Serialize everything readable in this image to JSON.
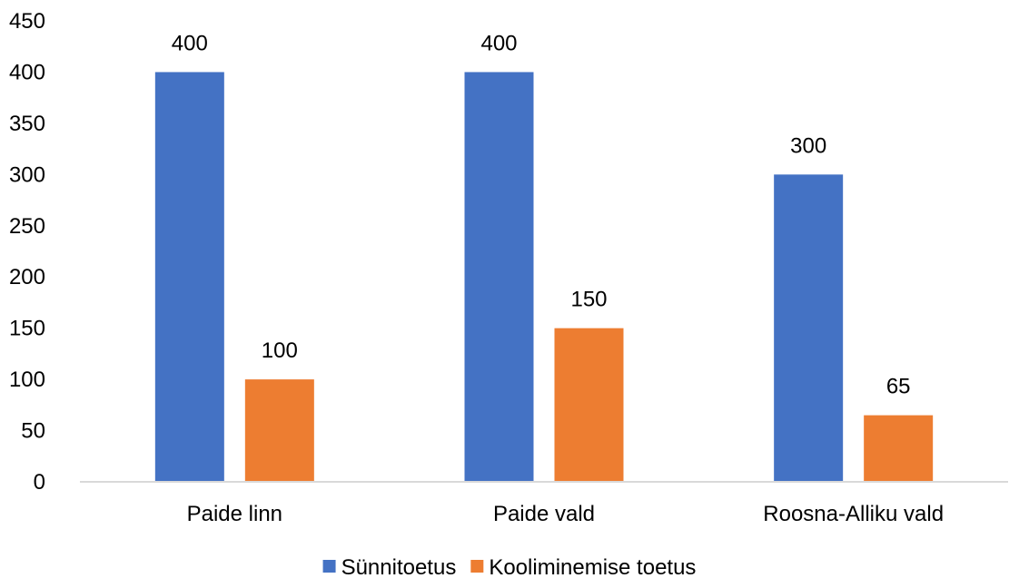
{
  "chart_data": {
    "type": "bar",
    "title": "",
    "xlabel": "",
    "ylabel": "",
    "categories": [
      "Paide linn",
      "Paide vald",
      "Roosna-Alliku vald"
    ],
    "series": [
      {
        "name": "Sünnitoetus",
        "color": "#4472C4",
        "values": [
          400,
          400,
          300
        ]
      },
      {
        "name": "Kooliminemise toetus",
        "color": "#ED7D31",
        "values": [
          100,
          150,
          65
        ]
      }
    ],
    "ylim": [
      0,
      450
    ],
    "yticks": [
      "0",
      "50",
      "100",
      "150",
      "200",
      "250",
      "300",
      "350",
      "400",
      "450"
    ],
    "grid": false,
    "legend_position": "bottom",
    "data_labels": true
  }
}
